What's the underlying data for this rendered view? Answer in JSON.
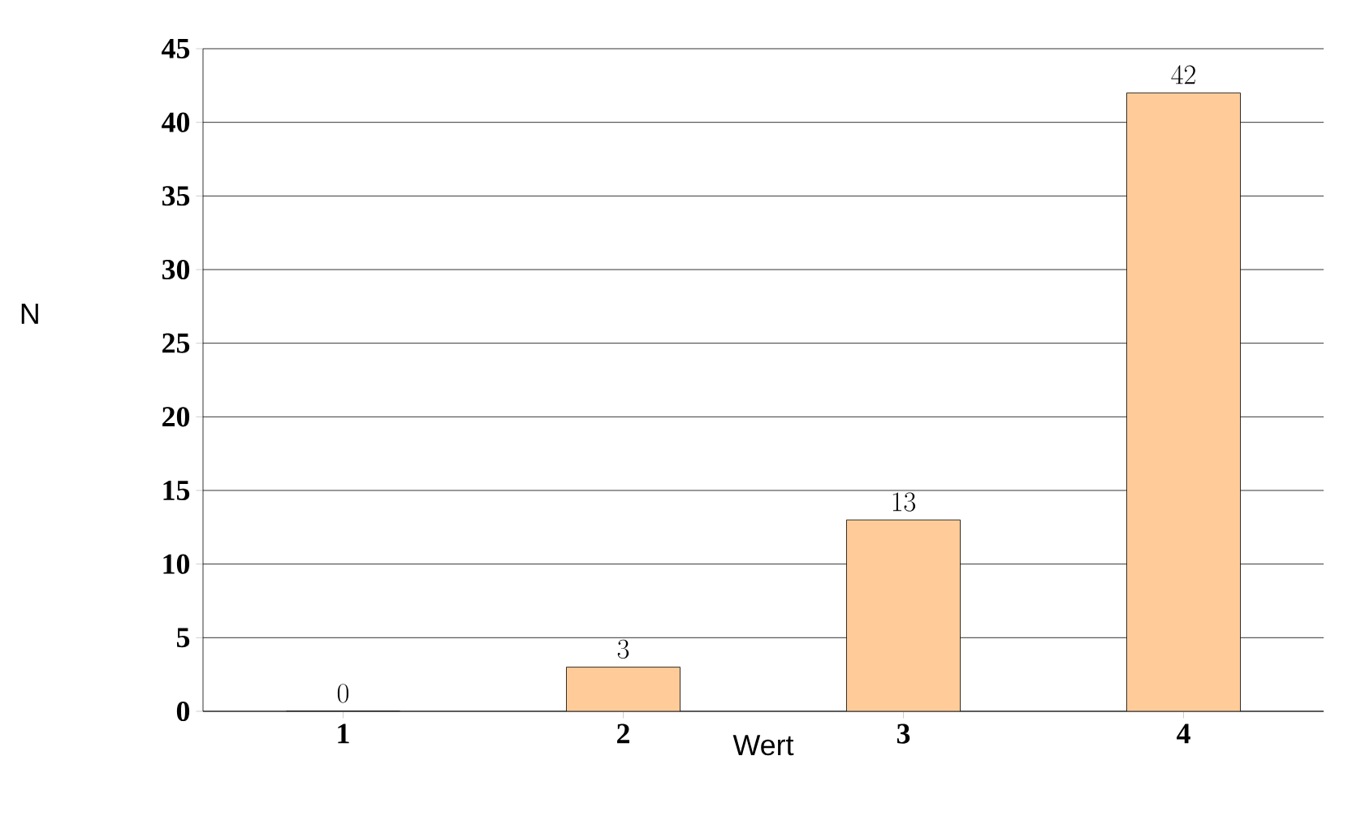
{
  "chart_data": {
    "type": "bar",
    "xlabel": "Wert",
    "ylabel": "N",
    "categories": [
      "1",
      "2",
      "3",
      "4"
    ],
    "values": [
      0,
      3,
      13,
      42
    ],
    "color": "#ffcc99",
    "ylim": [
      0,
      45
    ],
    "yticks": [
      0,
      5,
      10,
      15,
      20,
      25,
      30,
      35,
      40,
      45
    ],
    "grid": "y",
    "data_labels": true
  }
}
